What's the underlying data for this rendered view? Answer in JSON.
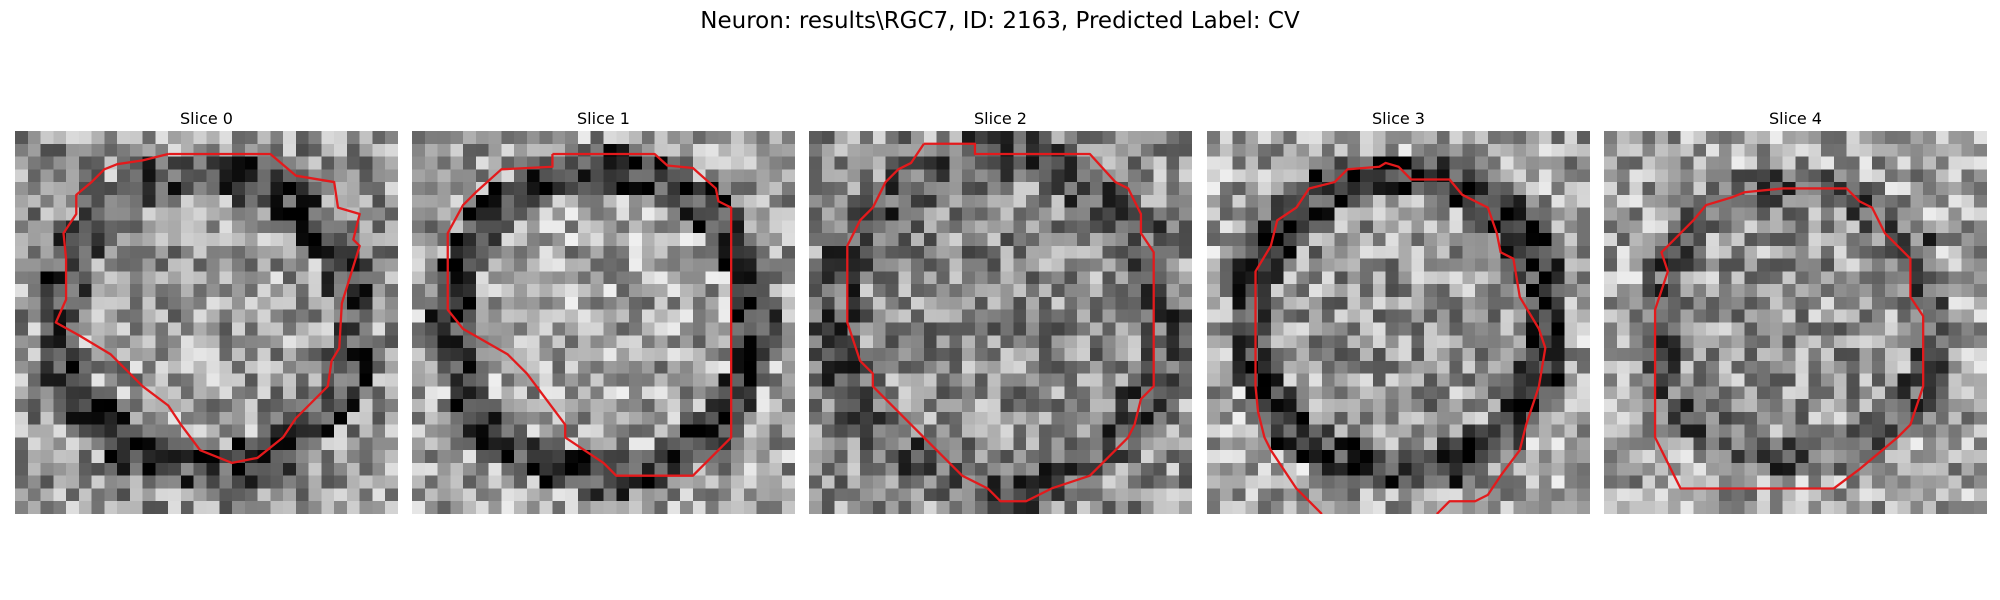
{
  "figure": {
    "title": "Neuron: results\\RGC7, ID: 2163, Predicted Label: CV"
  },
  "panels": [
    {
      "title": "Slice 0"
    },
    {
      "title": "Slice 1"
    },
    {
      "title": "Slice 2"
    },
    {
      "title": "Slice 3"
    },
    {
      "title": "Slice 4"
    }
  ],
  "colors": {
    "contour": "#e31a1c",
    "background": "#ffffff"
  }
}
